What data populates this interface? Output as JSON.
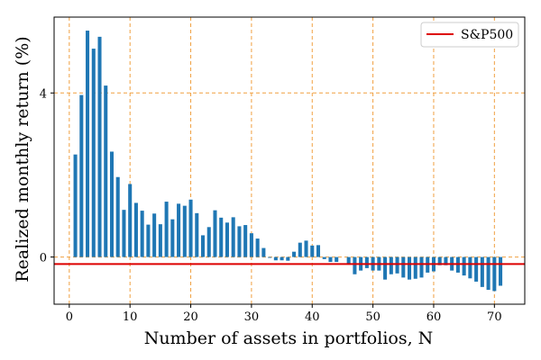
{
  "chart_data": {
    "type": "bar",
    "xlabel": "Number of assets in portfolios, N",
    "ylabel": "Realized monthly return (%)",
    "xlim": [
      -2.5,
      75
    ],
    "ylim": [
      -1.15,
      5.85
    ],
    "xticks": [
      0,
      10,
      20,
      30,
      40,
      50,
      60,
      70
    ],
    "yticks": [
      0,
      4
    ],
    "grid": {
      "style": "dashed",
      "color": "#f0a040"
    },
    "bar_color": "#1f77b4",
    "legend": {
      "position": "top-right",
      "entries": [
        "S&P500"
      ]
    },
    "reference_line": {
      "name": "S&P500",
      "y": -0.17,
      "color": "#dd0000"
    },
    "series": [
      {
        "x": [
          1,
          2,
          3,
          4,
          5,
          6,
          7,
          8,
          9,
          10,
          11,
          12,
          13,
          14,
          15,
          16,
          17,
          18,
          19,
          20,
          21,
          22,
          23,
          24,
          25,
          26,
          27,
          28,
          29,
          30,
          31,
          32,
          33,
          34,
          35,
          36,
          37,
          38,
          39,
          40,
          41,
          42,
          43,
          44,
          45,
          46,
          47,
          48,
          49,
          50,
          51,
          52,
          53,
          54,
          55,
          56,
          57,
          58,
          59,
          60,
          61,
          62,
          63,
          64,
          65,
          66,
          67,
          68,
          69,
          70,
          71
        ],
        "values": [
          2.5,
          3.95,
          5.52,
          5.08,
          5.37,
          4.18,
          2.57,
          1.95,
          1.15,
          1.78,
          1.32,
          1.13,
          0.79,
          1.06,
          0.8,
          1.35,
          0.92,
          1.3,
          1.25,
          1.4,
          1.07,
          0.53,
          0.73,
          1.14,
          0.96,
          0.84,
          0.97,
          0.75,
          0.78,
          0.58,
          0.45,
          0.22,
          -0.02,
          -0.08,
          -0.08,
          -0.09,
          0.13,
          0.35,
          0.4,
          0.28,
          0.29,
          -0.05,
          -0.12,
          -0.12,
          0.0,
          -0.17,
          -0.42,
          -0.33,
          -0.27,
          -0.33,
          -0.33,
          -0.55,
          -0.42,
          -0.4,
          -0.5,
          -0.55,
          -0.53,
          -0.5,
          -0.38,
          -0.35,
          -0.2,
          -0.2,
          -0.33,
          -0.38,
          -0.45,
          -0.52,
          -0.6,
          -0.73,
          -0.8,
          -0.83,
          -0.7
        ]
      }
    ]
  }
}
